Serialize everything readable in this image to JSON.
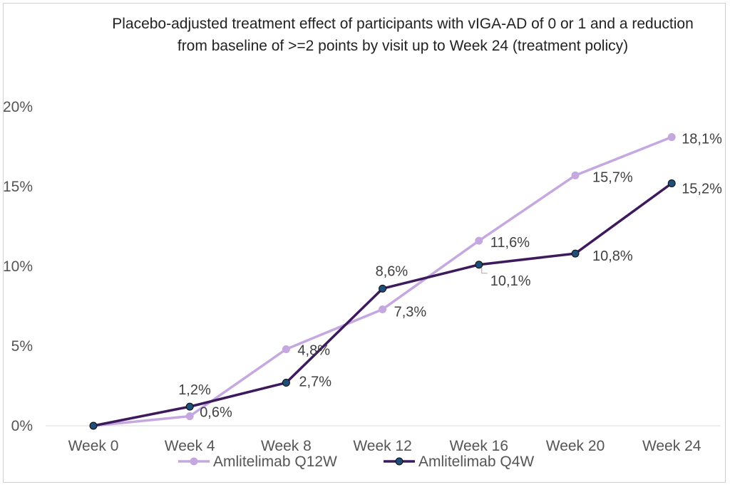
{
  "chart_data": {
    "type": "line",
    "title": "Placebo-adjusted treatment effect of participants with vIGA-AD of 0 or 1 and a reduction from baseline of >=2 points by visit up to Week 24 (treatment policy)",
    "xlabel": "",
    "ylabel": "",
    "categories": [
      "Week 0",
      "Week 4",
      "Week 8",
      "Week 12",
      "Week 16",
      "Week 20",
      "Week 24"
    ],
    "y_ticks": [
      "0%",
      "5%",
      "10%",
      "15%",
      "20%"
    ],
    "ylim": [
      0,
      20
    ],
    "grid": false,
    "legend_position": "bottom",
    "series": [
      {
        "name": "Amlitelimab Q12W",
        "color": "#c5a8e0",
        "marker_color": "#c5a8e0",
        "values": [
          0,
          0.6,
          4.8,
          7.3,
          11.6,
          15.7,
          18.1
        ],
        "labels": [
          "",
          "0,6%",
          "4,8%",
          "7,3%",
          "11,6%",
          "15,7%",
          "18,1%"
        ]
      },
      {
        "name": "Amlitelimab Q4W",
        "color": "#3d1a5c",
        "marker_color": "#1f4e79",
        "values": [
          0,
          1.2,
          2.7,
          8.6,
          10.1,
          10.8,
          15.2
        ],
        "labels": [
          "",
          "1,2%",
          "2,7%",
          "8,6%",
          "10,1%",
          "10,8%",
          "15,2%"
        ]
      }
    ]
  }
}
